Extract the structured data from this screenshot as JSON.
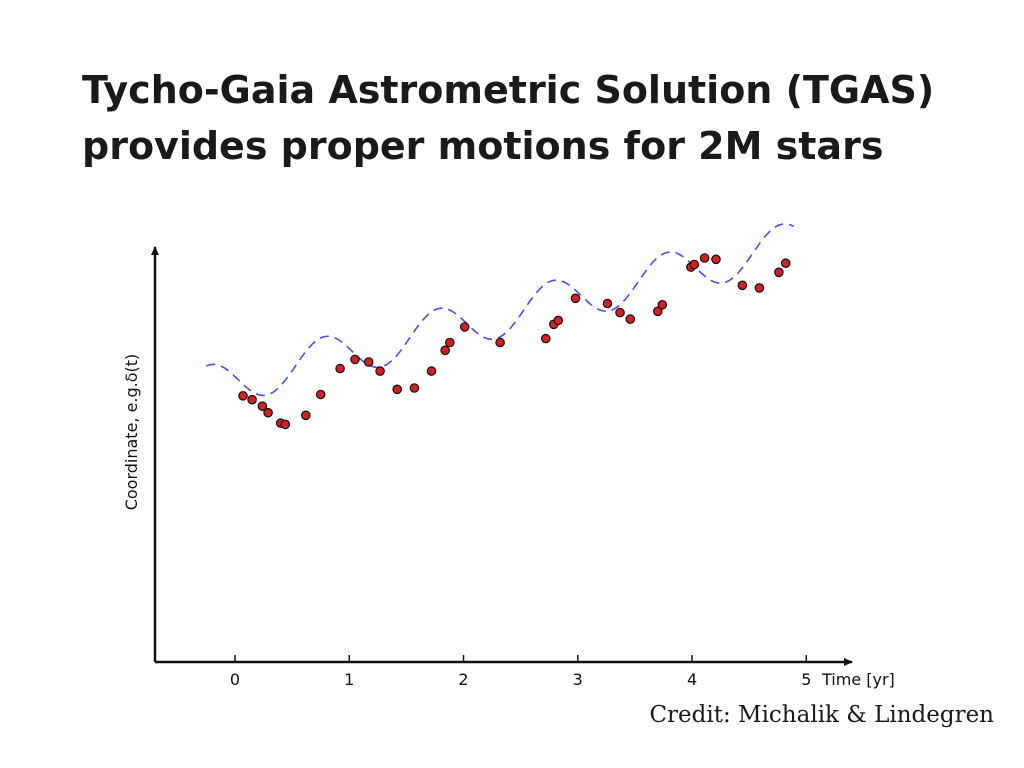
{
  "slide": {
    "title_line1": "Tycho-Gaia Astrometric Solution (TGAS)",
    "title_line2": "provides proper motions for 2M stars",
    "credit": "Credit: Michalik & Lindegren"
  },
  "chart_data": {
    "type": "scatter",
    "title": "",
    "xlabel": "Time [yr]",
    "ylabel": "Coordinate, e.g.δ(t)",
    "xlim": [
      -0.7,
      5.4
    ],
    "ylim": [
      0,
      1
    ],
    "xticks": [
      "0",
      "1",
      "2",
      "3",
      "4",
      "5"
    ],
    "yticks": [],
    "grid": false,
    "legend": "none",
    "colors": {
      "points": "#d42020",
      "point_edge": "#111111",
      "model": "#4a4ee6",
      "axes": "#111111"
    },
    "series": [
      {
        "kind": "points",
        "x": [
          0.07,
          0.15,
          0.24,
          0.29,
          0.4,
          0.44,
          0.62,
          0.75,
          0.92,
          1.05,
          1.17,
          1.27,
          1.42,
          1.57,
          1.72,
          1.84,
          1.88,
          2.01,
          2.32,
          2.72,
          2.79,
          2.83,
          2.98,
          3.26,
          3.37,
          3.46,
          3.7,
          3.74,
          3.99,
          4.02,
          4.11,
          4.21,
          4.44,
          4.59,
          4.76,
          4.82
        ],
        "y": [
          0.47,
          0.455,
          0.43,
          0.405,
          0.365,
          0.36,
          0.395,
          0.475,
          0.575,
          0.61,
          0.6,
          0.565,
          0.495,
          0.5,
          0.565,
          0.645,
          0.675,
          0.735,
          0.675,
          0.69,
          0.745,
          0.76,
          0.845,
          0.825,
          0.79,
          0.765,
          0.795,
          0.82,
          0.965,
          0.975,
          1.0,
          0.995,
          0.895,
          0.885,
          0.945,
          0.98
        ]
      },
      {
        "kind": "model",
        "offset": 0.528,
        "slope": 0.108,
        "amplitude": 0.085,
        "period": 1.0,
        "phase": 0.53,
        "x_range": [
          -0.25,
          4.9
        ]
      }
    ]
  }
}
